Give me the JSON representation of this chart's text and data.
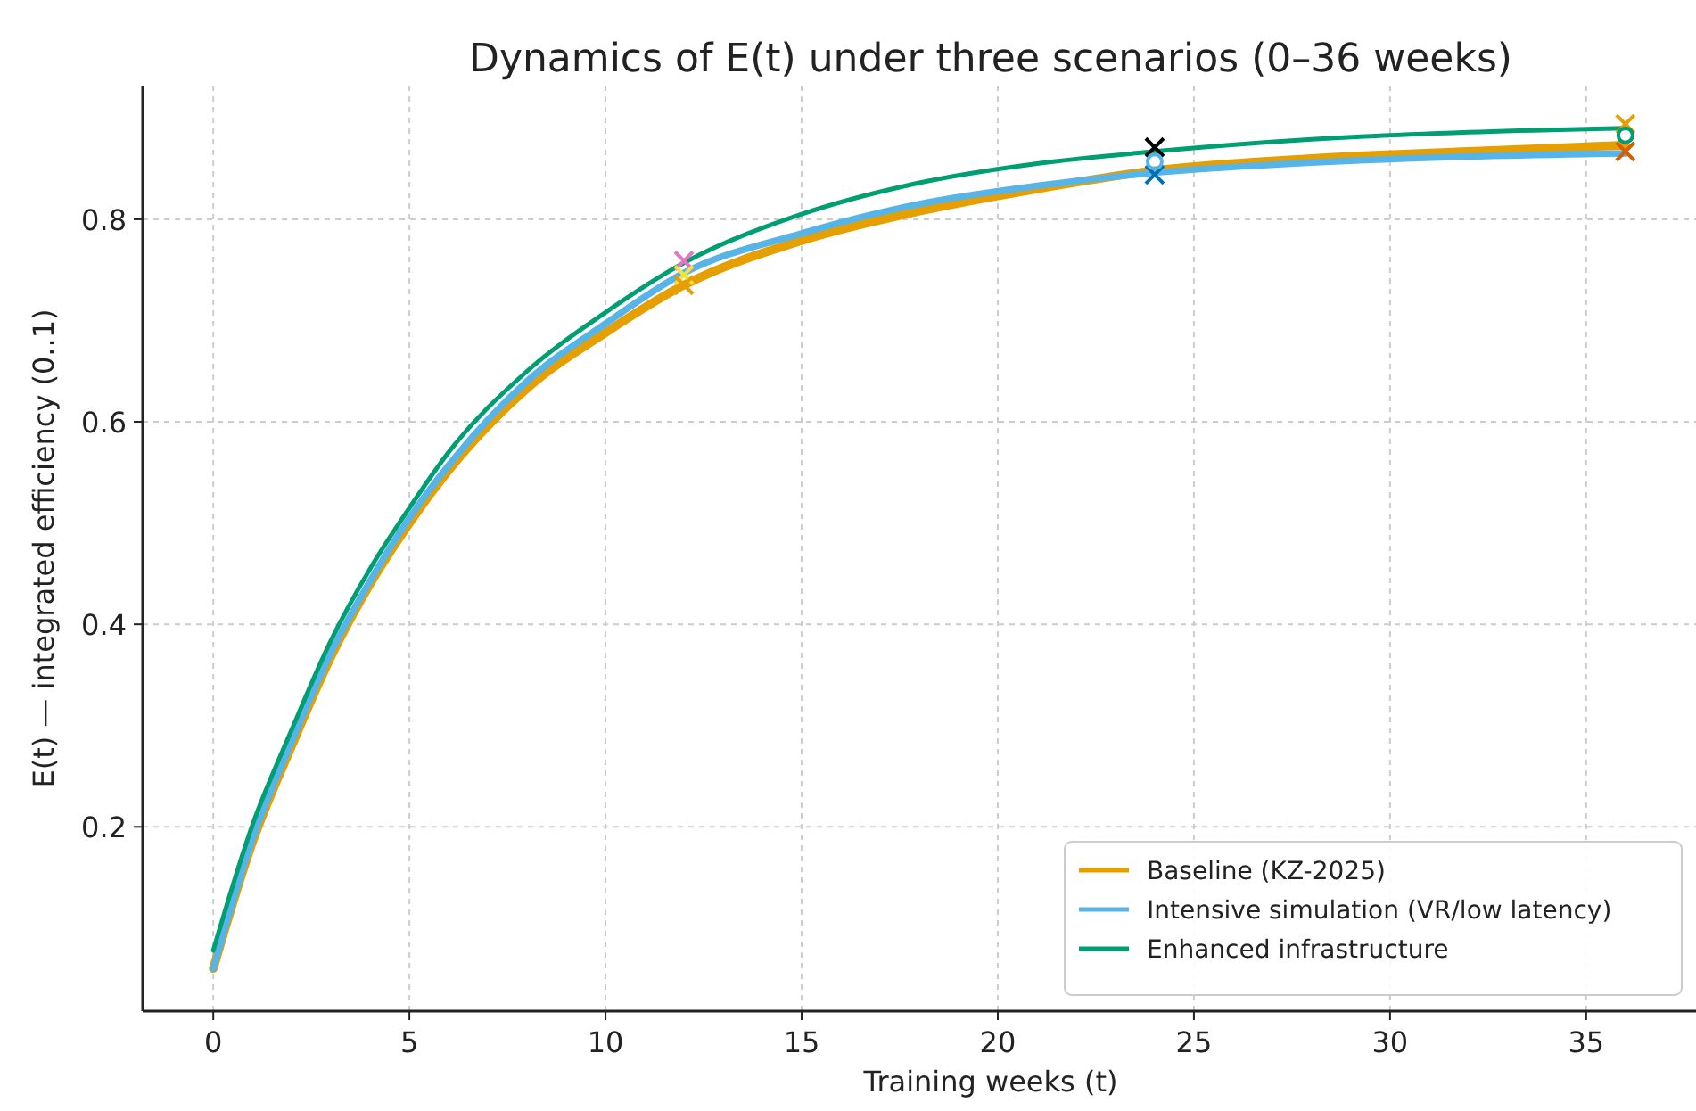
{
  "chart_data": {
    "type": "line",
    "title": "Dynamics of E(t) under three scenarios (0–36 weeks)",
    "xlabel": "Training weeks (t)",
    "ylabel": "E(t) — integrated efficiency (0..1)",
    "x": [
      0,
      1,
      2,
      3,
      4,
      5,
      6,
      8,
      10,
      12,
      15,
      18,
      21,
      24,
      28,
      32,
      36
    ],
    "series": [
      {
        "name": "Baseline (KZ-2025)",
        "color": "#e69f00",
        "values": [
          0.06,
          0.185,
          0.28,
          0.368,
          0.44,
          0.5,
          0.552,
          0.633,
          0.688,
          0.735,
          0.779,
          0.808,
          0.83,
          0.848,
          0.86,
          0.867,
          0.873
        ]
      },
      {
        "name": "Intensive simulation (VR/low latency)",
        "color": "#56b4e9",
        "values": [
          0.06,
          0.188,
          0.284,
          0.372,
          0.443,
          0.505,
          0.557,
          0.64,
          0.697,
          0.747,
          0.786,
          0.815,
          0.833,
          0.846,
          0.856,
          0.862,
          0.865
        ]
      },
      {
        "name": "Enhanced infrastructure",
        "color": "#009e73",
        "values": [
          0.078,
          0.202,
          0.296,
          0.384,
          0.455,
          0.515,
          0.57,
          0.65,
          0.708,
          0.757,
          0.805,
          0.836,
          0.855,
          0.867,
          0.879,
          0.886,
          0.89
        ]
      },
      {
        "type": "scatter",
        "marker": "cross",
        "colors": [
          "#e377c2",
          "#f0e442",
          "#e69f00",
          "#000000",
          "#0072b2",
          "#e69f00",
          "#d55e00"
        ],
        "x": [
          12,
          12,
          12,
          24,
          24,
          36,
          36
        ],
        "values": [
          0.759,
          0.745,
          0.735,
          0.871,
          0.844,
          0.894,
          0.867
        ]
      },
      {
        "type": "scatter",
        "marker": "circle",
        "colors": [
          "#56b4e9",
          "#009e73"
        ],
        "x": [
          24,
          36
        ],
        "values": [
          0.857,
          0.883
        ]
      }
    ],
    "xlim": [
      -1.8,
      37.8
    ],
    "xticks": [
      0,
      5,
      10,
      15,
      20,
      25,
      30,
      35
    ],
    "ylim": [
      0.018,
      0.932
    ],
    "yticks": [
      {
        "value": 0.2,
        "label": "0.2"
      },
      {
        "value": 0.4,
        "label": "0.4"
      },
      {
        "value": 0.6,
        "label": "0.6"
      },
      {
        "value": 0.8,
        "label": "0.8"
      }
    ],
    "grid": true,
    "legend": "bottom right",
    "line_style": "solid"
  }
}
